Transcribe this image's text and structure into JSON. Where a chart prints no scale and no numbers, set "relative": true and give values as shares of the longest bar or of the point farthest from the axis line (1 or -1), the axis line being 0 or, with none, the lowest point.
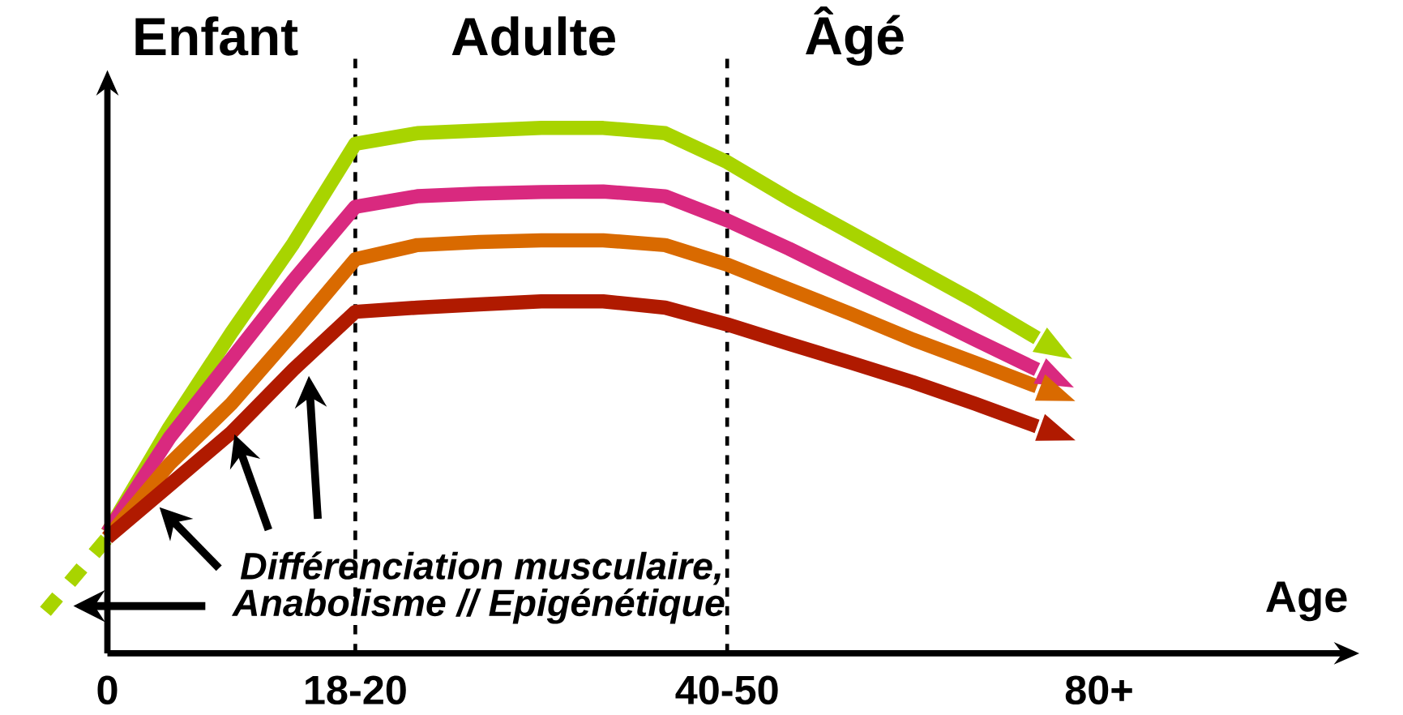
{
  "chart_data": {
    "type": "line",
    "relative": true,
    "xlabel": "Age",
    "categories": [
      null,
      null,
      "0",
      null,
      null,
      null,
      "18-20",
      null,
      null,
      null,
      null,
      null,
      "40-50",
      null,
      null,
      null,
      null,
      null,
      "80+",
      null,
      null,
      null,
      null
    ],
    "grid": false,
    "marker": "none",
    "series": [
      {
        "color": "#a8d400",
        "line_style": "dotted",
        "values": [
          null,
          0.08,
          0.22,
          null,
          null,
          null,
          null,
          null,
          null,
          null,
          null,
          null,
          null,
          null,
          null,
          null,
          null,
          null,
          null,
          null,
          null,
          null,
          null
        ]
      },
      {
        "color": "#a8d400",
        "line_style": "solid",
        "values": [
          null,
          null,
          0.23,
          0.43,
          0.61,
          0.78,
          0.97,
          0.99,
          0.995,
          1,
          1,
          0.99,
          0.935,
          0.865,
          0.8,
          0.735,
          0.67,
          0.6,
          null,
          null,
          null,
          null,
          null
        ]
      },
      {
        "color": "#d9297f",
        "line_style": "solid",
        "values": [
          null,
          null,
          0.23,
          0.41,
          0.56,
          0.71,
          0.85,
          0.87,
          0.875,
          0.878,
          0.879,
          0.87,
          0.824,
          0.77,
          0.712,
          0.655,
          0.597,
          0.54,
          null,
          null,
          null,
          null,
          null
        ]
      },
      {
        "color": "#d96a00",
        "line_style": "solid",
        "values": [
          null,
          null,
          0.22,
          0.36,
          0.475,
          0.61,
          0.75,
          0.777,
          0.783,
          0.786,
          0.786,
          0.777,
          0.74,
          0.693,
          0.646,
          0.597,
          0.553,
          0.508,
          null,
          null,
          null,
          null,
          null
        ]
      },
      {
        "color": "#b01a00",
        "line_style": "solid",
        "values": [
          null,
          null,
          0.22,
          0.32,
          0.42,
          0.54,
          0.65,
          0.658,
          0.664,
          0.67,
          0.67,
          0.658,
          0.626,
          0.589,
          0.553,
          0.516,
          0.475,
          0.432,
          null,
          null,
          null,
          null,
          null
        ]
      }
    ],
    "ref_lines": [
      {
        "axis": "x",
        "value": "18-20",
        "line_style": "dashed",
        "color": "#000000"
      },
      {
        "axis": "x",
        "value": "40-50",
        "line_style": "dashed",
        "color": "#000000"
      }
    ],
    "annotations": [
      "Enfant",
      "Adulte",
      "Âgé",
      "Différenciation musculaire,",
      "Anabolisme // Epigénétique"
    ]
  }
}
